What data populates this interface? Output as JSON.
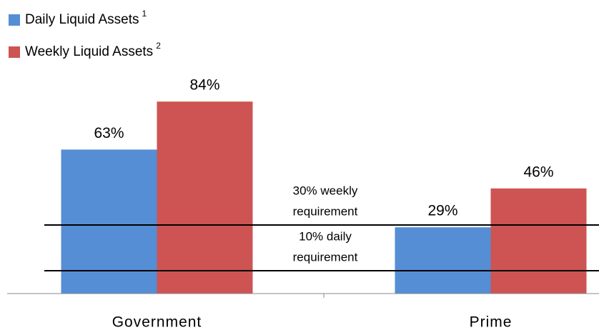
{
  "chart_data": {
    "type": "bar",
    "categories": [
      "Government",
      "Prime"
    ],
    "series": [
      {
        "name": "Daily Liquid Assets",
        "note": "1",
        "color": "#558ed5",
        "values": [
          63,
          29
        ],
        "value_labels": [
          "63%",
          "29%"
        ]
      },
      {
        "name": "Weekly Liquid Assets",
        "note": "2",
        "color": "#cd5452",
        "values": [
          84,
          46
        ],
        "value_labels": [
          "84%",
          "46%"
        ]
      }
    ],
    "ylim": [
      0,
      100
    ],
    "reference_lines": [
      {
        "value": 30,
        "label": [
          "30% weekly",
          "requirement"
        ]
      },
      {
        "value": 10,
        "label": [
          "10% daily",
          "requirement"
        ]
      }
    ],
    "legend": "top-left"
  }
}
